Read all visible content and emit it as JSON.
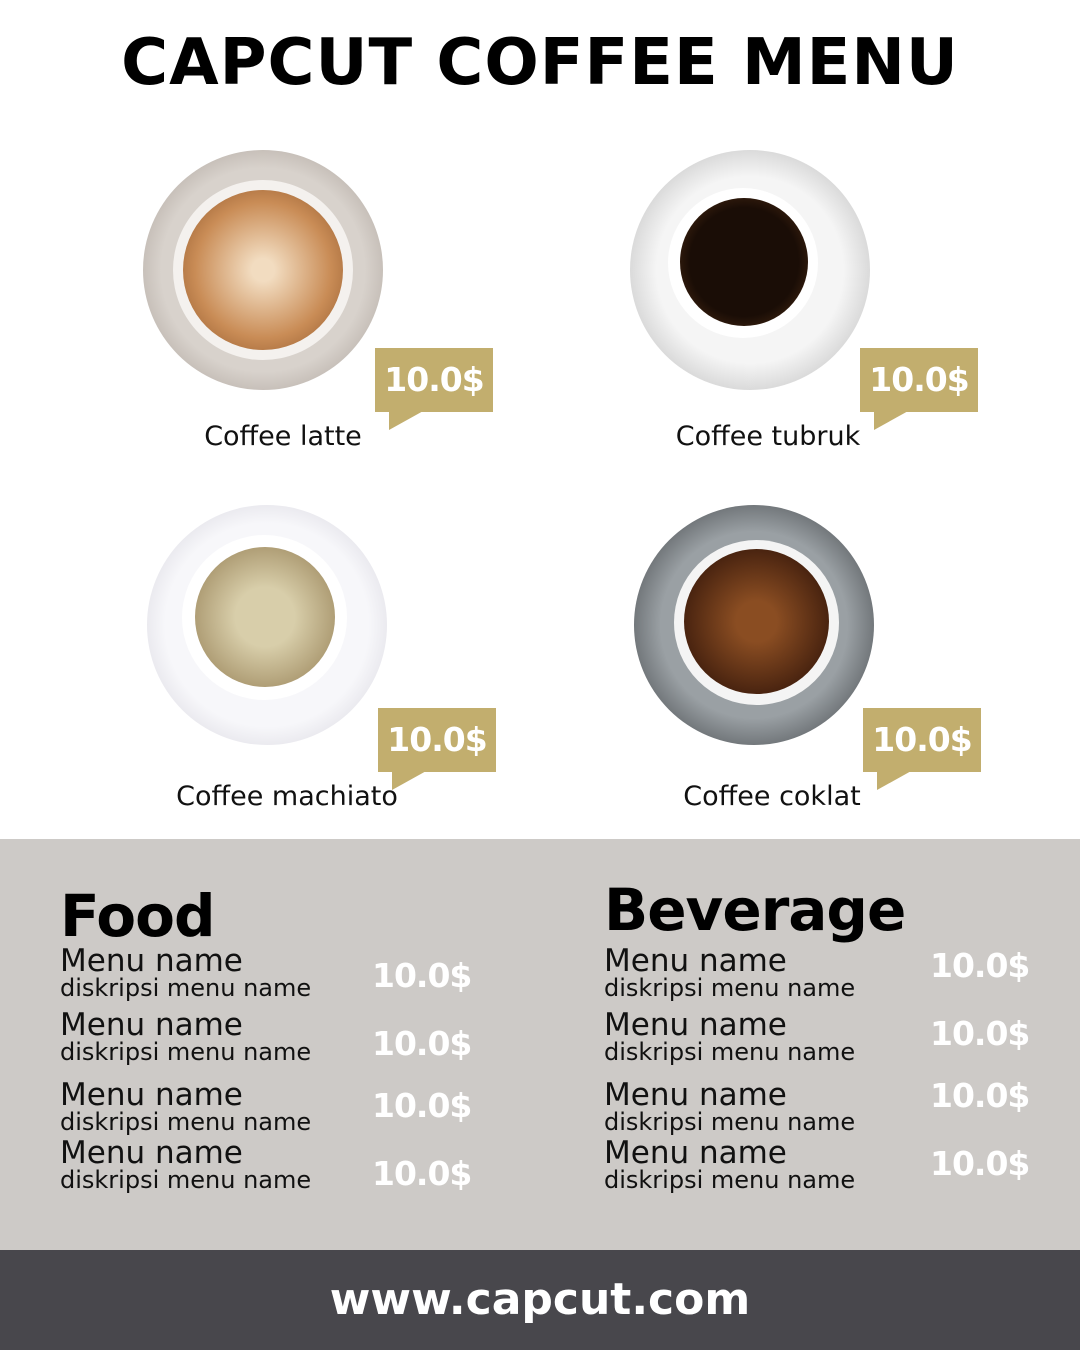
{
  "title": "CAPCUT COFFEE MENU",
  "colors": {
    "gold": "#C2AE6E",
    "panel": "#CDCAC7",
    "footer": "#48474C"
  },
  "coffees": [
    {
      "name": "Coffee latte",
      "price": "10.0$"
    },
    {
      "name": "Coffee tubruk",
      "price": "10.0$"
    },
    {
      "name": "Coffee machiato",
      "price": "10.0$"
    },
    {
      "name": "Coffee coklat",
      "price": "10.0$"
    }
  ],
  "food": {
    "title": "Food",
    "items": [
      {
        "name": "Menu name",
        "desc": "diskripsi menu name",
        "price": "10.0$"
      },
      {
        "name": "Menu name",
        "desc": "diskripsi menu name",
        "price": "10.0$"
      },
      {
        "name": "Menu name",
        "desc": "diskripsi menu name",
        "price": "10.0$"
      },
      {
        "name": "Menu name",
        "desc": "diskripsi menu name",
        "price": "10.0$"
      }
    ]
  },
  "beverage": {
    "title": "Beverage",
    "items": [
      {
        "name": "Menu name",
        "desc": "diskripsi menu name",
        "price": "10.0$"
      },
      {
        "name": "Menu name",
        "desc": "diskripsi menu name",
        "price": "10.0$"
      },
      {
        "name": "Menu name",
        "desc": "diskripsi menu name",
        "price": "10.0$"
      },
      {
        "name": "Menu name",
        "desc": "diskripsi menu name",
        "price": "10.0$"
      }
    ]
  },
  "footer": {
    "url": "www.capcut.com"
  }
}
